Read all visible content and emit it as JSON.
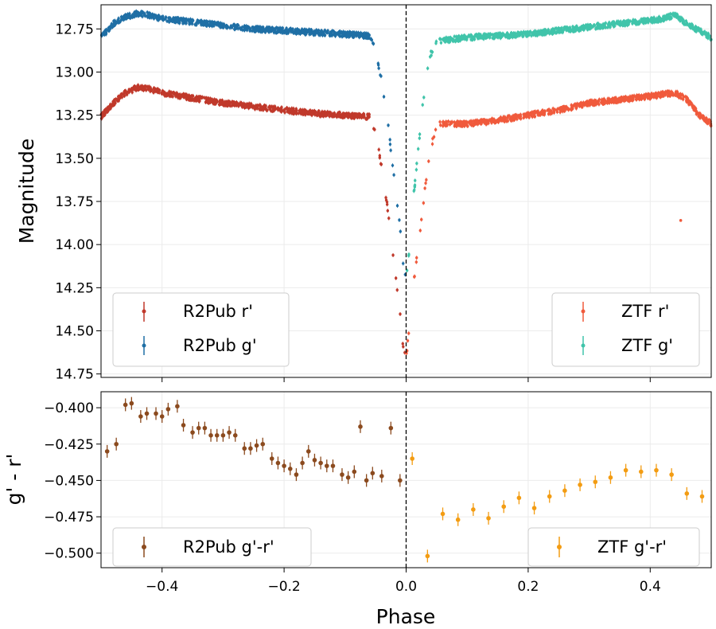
{
  "chart_data": [
    {
      "type": "scatter",
      "panel": "top",
      "ylabel": "Magnitude",
      "xlabel": "",
      "xlim": [
        -0.5,
        0.5
      ],
      "ylim": [
        14.77,
        12.61
      ],
      "y_inverted": true,
      "yticks": [
        12.75,
        13.0,
        13.25,
        13.5,
        13.75,
        14.0,
        14.25,
        14.5,
        14.75
      ],
      "ytick_labels": [
        "12.75",
        "13.00",
        "13.25",
        "13.50",
        "13.75",
        "14.00",
        "14.25",
        "14.50",
        "14.75"
      ],
      "xticks": [
        -0.4,
        -0.2,
        0.0,
        0.2,
        0.4
      ],
      "grid": true,
      "vline_x": 0.0,
      "series": [
        {
          "name": "R2Pub r'",
          "color": "#c0392b",
          "x": [
            -0.5,
            -0.48,
            -0.46,
            -0.44,
            -0.42,
            -0.4,
            -0.35,
            -0.3,
            -0.25,
            -0.2,
            -0.15,
            -0.1,
            -0.06,
            -0.05,
            -0.04,
            -0.03,
            -0.02,
            -0.01,
            -0.005,
            0.0
          ],
          "y": [
            13.26,
            13.18,
            13.12,
            13.09,
            13.1,
            13.12,
            13.15,
            13.18,
            13.2,
            13.22,
            13.24,
            13.25,
            13.26,
            13.35,
            13.55,
            13.8,
            14.1,
            14.4,
            14.58,
            14.65
          ]
        },
        {
          "name": "R2Pub g'",
          "color": "#1f6fa5",
          "x": [
            -0.5,
            -0.48,
            -0.46,
            -0.44,
            -0.42,
            -0.4,
            -0.35,
            -0.3,
            -0.25,
            -0.2,
            -0.15,
            -0.1,
            -0.06,
            -0.05,
            -0.04,
            -0.03,
            -0.02,
            -0.01,
            -0.005,
            0.0
          ],
          "y": [
            12.8,
            12.72,
            12.68,
            12.66,
            12.67,
            12.69,
            12.71,
            12.73,
            12.75,
            12.76,
            12.77,
            12.78,
            12.79,
            12.88,
            13.05,
            13.3,
            13.6,
            13.9,
            14.1,
            14.2
          ]
        },
        {
          "name": "ZTF r'",
          "color": "#f05a3c",
          "x": [
            0.0,
            0.005,
            0.01,
            0.02,
            0.03,
            0.04,
            0.05,
            0.1,
            0.15,
            0.2,
            0.25,
            0.3,
            0.35,
            0.4,
            0.42,
            0.44,
            0.46,
            0.48,
            0.5
          ],
          "y": [
            14.65,
            14.5,
            14.3,
            14.0,
            13.7,
            13.45,
            13.3,
            13.3,
            13.28,
            13.25,
            13.22,
            13.18,
            13.16,
            13.14,
            13.13,
            13.12,
            13.16,
            13.25,
            13.3
          ]
        },
        {
          "name": "ZTF g'",
          "color": "#40c4aa",
          "x": [
            0.0,
            0.005,
            0.01,
            0.02,
            0.03,
            0.04,
            0.05,
            0.1,
            0.15,
            0.2,
            0.25,
            0.3,
            0.35,
            0.4,
            0.42,
            0.44,
            0.46,
            0.48,
            0.5
          ],
          "y": [
            14.2,
            14.05,
            13.8,
            13.45,
            13.1,
            12.9,
            12.82,
            12.8,
            12.79,
            12.78,
            12.76,
            12.74,
            12.72,
            12.7,
            12.69,
            12.67,
            12.72,
            12.76,
            12.8
          ]
        }
      ],
      "outliers": [
        {
          "series": "ZTF r'",
          "x": 0.45,
          "y": 13.86
        }
      ],
      "legends": [
        {
          "position": "lower-left",
          "entries": [
            "R2Pub r'",
            "R2Pub g'"
          ]
        },
        {
          "position": "lower-right",
          "entries": [
            "ZTF r'",
            "ZTF g'"
          ]
        }
      ]
    },
    {
      "type": "scatter",
      "panel": "bottom",
      "xlabel": "Phase",
      "ylabel": "g' - r'",
      "xlim": [
        -0.5,
        0.5
      ],
      "ylim": [
        -0.51,
        -0.389
      ],
      "xticks": [
        -0.4,
        -0.2,
        0.0,
        0.2,
        0.4
      ],
      "xtick_labels": [
        "−0.4",
        "−0.2",
        "0.0",
        "0.2",
        "0.4"
      ],
      "yticks": [
        -0.4,
        -0.425,
        -0.45,
        -0.475,
        -0.5
      ],
      "ytick_labels": [
        "−0.400",
        "−0.425",
        "−0.450",
        "−0.475",
        "−0.500"
      ],
      "grid": true,
      "vline_x": 0.0,
      "series": [
        {
          "name": "R2Pub g'-r'",
          "color": "#8b4a1e",
          "x": [
            -0.49,
            -0.475,
            -0.46,
            -0.45,
            -0.435,
            -0.425,
            -0.41,
            -0.4,
            -0.39,
            -0.375,
            -0.365,
            -0.35,
            -0.34,
            -0.33,
            -0.32,
            -0.31,
            -0.3,
            -0.29,
            -0.28,
            -0.265,
            -0.255,
            -0.245,
            -0.235,
            -0.22,
            -0.21,
            -0.2,
            -0.19,
            -0.18,
            -0.17,
            -0.16,
            -0.15,
            -0.14,
            -0.13,
            -0.12,
            -0.105,
            -0.095,
            -0.085,
            -0.075,
            -0.065,
            -0.055,
            -0.04,
            -0.025,
            -0.01
          ],
          "y": [
            -0.43,
            -0.425,
            -0.398,
            -0.397,
            -0.406,
            -0.404,
            -0.404,
            -0.406,
            -0.401,
            -0.399,
            -0.412,
            -0.417,
            -0.414,
            -0.414,
            -0.419,
            -0.419,
            -0.419,
            -0.417,
            -0.419,
            -0.428,
            -0.428,
            -0.426,
            -0.425,
            -0.435,
            -0.438,
            -0.44,
            -0.442,
            -0.446,
            -0.438,
            -0.43,
            -0.436,
            -0.438,
            -0.44,
            -0.44,
            -0.446,
            -0.448,
            -0.444,
            -0.413,
            -0.45,
            -0.445,
            -0.447,
            -0.414,
            -0.45
          ]
        },
        {
          "name": "ZTF g'-r'",
          "color": "#f39c12",
          "x": [
            0.01,
            0.035,
            0.06,
            0.085,
            0.11,
            0.135,
            0.16,
            0.185,
            0.21,
            0.235,
            0.26,
            0.285,
            0.31,
            0.335,
            0.36,
            0.385,
            0.41,
            0.435,
            0.46,
            0.485
          ],
          "y": [
            -0.435,
            -0.502,
            -0.473,
            -0.477,
            -0.47,
            -0.476,
            -0.468,
            -0.462,
            -0.469,
            -0.461,
            -0.457,
            -0.453,
            -0.451,
            -0.448,
            -0.443,
            -0.444,
            -0.443,
            -0.446,
            -0.459,
            -0.461
          ]
        }
      ],
      "legends": [
        {
          "position": "lower-left",
          "entries": [
            "R2Pub g'-r'"
          ]
        },
        {
          "position": "lower-right",
          "entries": [
            "ZTF g'-r'"
          ]
        }
      ]
    }
  ]
}
